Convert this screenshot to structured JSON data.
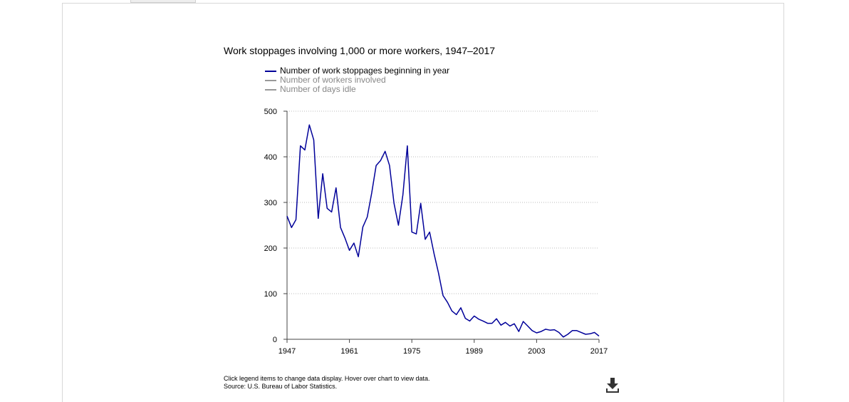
{
  "chart_data": {
    "type": "line",
    "title": "Work stoppages involving 1,000 or more workers, 1947–2017",
    "xlabel": "",
    "ylabel": "",
    "xlim": [
      1947,
      2017
    ],
    "ylim": [
      0,
      500
    ],
    "x_ticks": [
      1947,
      1961,
      1975,
      1989,
      2003,
      2017
    ],
    "y_ticks": [
      0,
      100,
      200,
      300,
      400,
      500
    ],
    "grid": true,
    "legend_position": "top-left",
    "series": [
      {
        "name": "Number of work stoppages beginning in year",
        "color": "#000099",
        "active": true,
        "x": [
          1947,
          1948,
          1949,
          1950,
          1951,
          1952,
          1953,
          1954,
          1955,
          1956,
          1957,
          1958,
          1959,
          1960,
          1961,
          1962,
          1963,
          1964,
          1965,
          1966,
          1967,
          1968,
          1969,
          1970,
          1971,
          1972,
          1973,
          1974,
          1975,
          1976,
          1977,
          1978,
          1979,
          1980,
          1981,
          1982,
          1983,
          1984,
          1985,
          1986,
          1987,
          1988,
          1989,
          1990,
          1991,
          1992,
          1993,
          1994,
          1995,
          1996,
          1997,
          1998,
          1999,
          2000,
          2001,
          2002,
          2003,
          2004,
          2005,
          2006,
          2007,
          2008,
          2009,
          2010,
          2011,
          2012,
          2013,
          2014,
          2015,
          2016,
          2017
        ],
        "values": [
          270,
          245,
          262,
          424,
          415,
          470,
          437,
          265,
          363,
          287,
          279,
          332,
          245,
          222,
          195,
          211,
          181,
          246,
          268,
          321,
          381,
          392,
          412,
          381,
          298,
          250,
          317,
          424,
          235,
          231,
          298,
          219,
          235,
          187,
          145,
          96,
          81,
          62,
          54,
          69,
          46,
          40,
          51,
          44,
          40,
          35,
          35,
          45,
          31,
          37,
          29,
          34,
          17,
          39,
          29,
          19,
          14,
          17,
          22,
          20,
          21,
          15,
          5,
          11,
          19,
          19,
          15,
          11,
          12,
          15,
          7
        ]
      },
      {
        "name": "Number of workers involved",
        "color": "#999999",
        "active": false
      },
      {
        "name": "Number of days idle",
        "color": "#999999",
        "active": false
      }
    ]
  },
  "footer": {
    "instructions": "Click legend items to change data display. Hover over chart to view data.",
    "source": "Source: U.S. Bureau of Labor Statistics."
  },
  "icons": {
    "download": "download-icon"
  }
}
